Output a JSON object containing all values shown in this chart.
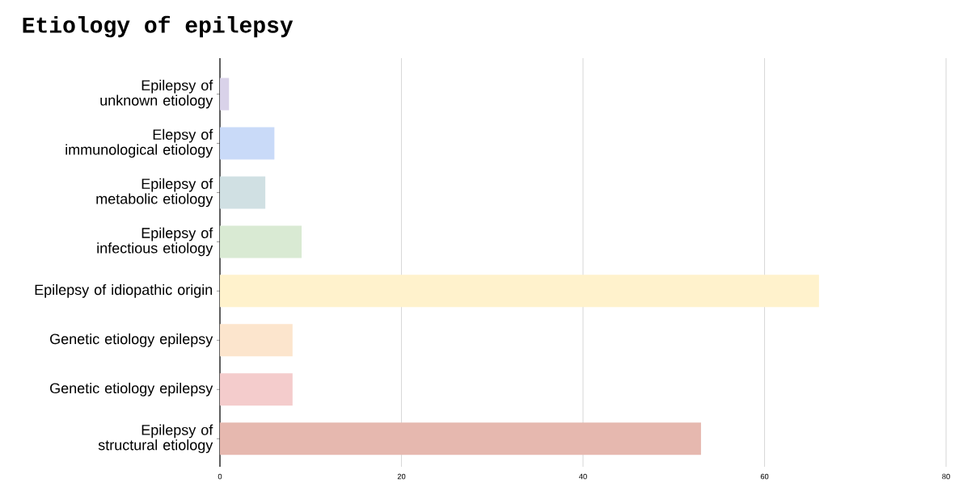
{
  "chart_data": {
    "type": "bar",
    "orientation": "horizontal",
    "title": "Etiology of epilepsy",
    "categories": [
      "Epilepsy of unknown etiology",
      "Elepsy of immunological etiology",
      "Epilepsy of metabolic etiology",
      "Epilepsy of infectious etiology",
      "Epilepsy of idiopathic origin",
      "Genetic etiology epilepsy",
      "Genetic etiology epilepsy",
      "Epilepsy of structural etiology"
    ],
    "values": [
      1,
      6,
      5,
      9,
      66,
      8,
      8,
      53
    ],
    "colors": [
      "#d9d2e9",
      "#c9daf8",
      "#d0e0e3",
      "#d9ead3",
      "#fff2cc",
      "#fce5cd",
      "#f4cccc",
      "#e6b8af"
    ],
    "xlim": [
      0,
      80
    ],
    "xticks": [
      0,
      20,
      40,
      60,
      80
    ],
    "grid": "x"
  }
}
